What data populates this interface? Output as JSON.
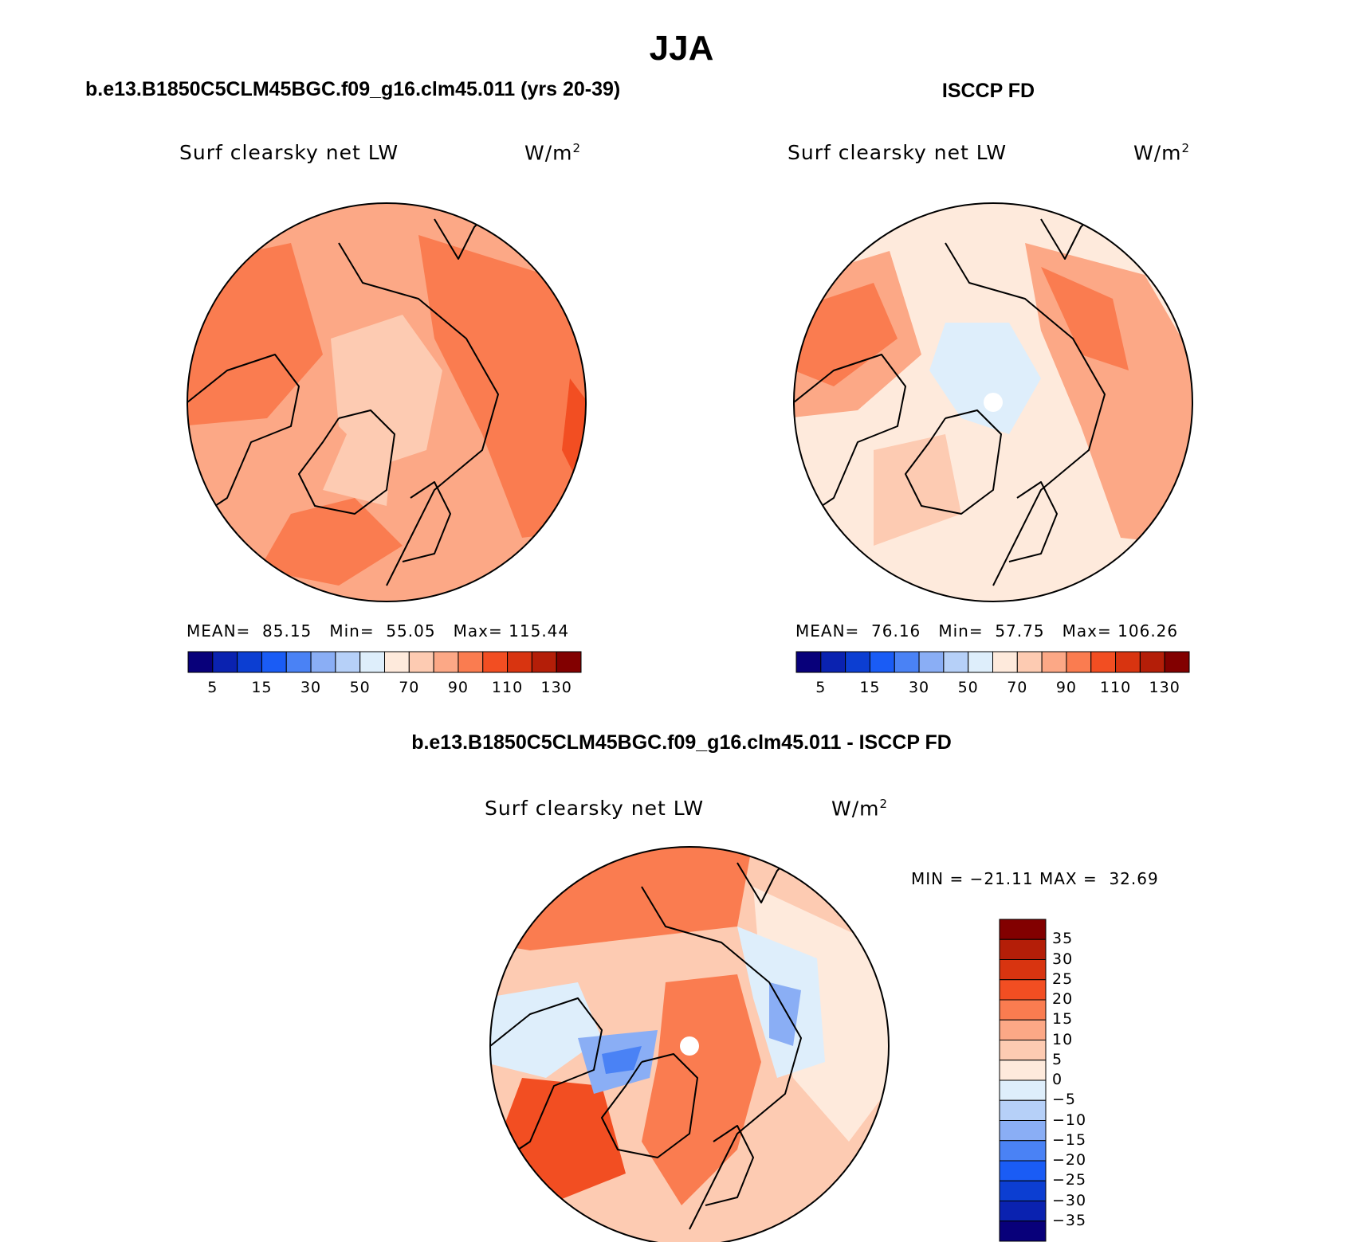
{
  "main_title": "JJA",
  "panels": [
    {
      "title": "b.e13.B1850C5CLM45BGC.f09_g16.clm45.011 (yrs 20-39)",
      "variable": "Surf clearsky net LW",
      "units_base": "W/m",
      "units_exp": "2",
      "stats": {
        "mean_label": "MEAN=",
        "mean": "85.15",
        "min_label": "Min=",
        "min": "55.05",
        "max_label": "Max=",
        "max": "115.44"
      }
    },
    {
      "title": "ISCCP FD",
      "variable": "Surf clearsky net LW",
      "units_base": "W/m",
      "units_exp": "2",
      "stats": {
        "mean_label": "MEAN=",
        "mean": "76.16",
        "min_label": "Min=",
        "min": "57.75",
        "max_label": "Max=",
        "max": "106.26"
      }
    },
    {
      "title": "b.e13.B1850C5CLM45BGC.f09_g16.clm45.011 - ISCCP FD",
      "variable": "Surf clearsky net LW",
      "units_base": "W/m",
      "units_exp": "2",
      "stats": {
        "min_label": "MIN =",
        "min": "−21.11",
        "max_label": "MAX =",
        "max": "32.69"
      }
    }
  ],
  "abs_colorbar": {
    "colors": [
      "#08007a",
      "#0a22b0",
      "#0c3ed2",
      "#1a5cf5",
      "#4a82f5",
      "#8aaef5",
      "#b6d0f8",
      "#deeefb",
      "#feeadc",
      "#fdcbb2",
      "#fca886",
      "#fa7c50",
      "#f24e22",
      "#d83410",
      "#b41e08",
      "#820000"
    ],
    "tick_labels": [
      "5",
      "15",
      "30",
      "50",
      "70",
      "90",
      "110",
      "130"
    ]
  },
  "diff_colorbar": {
    "colors": [
      "#820000",
      "#b41e08",
      "#d83410",
      "#f24e22",
      "#fa7c50",
      "#fca886",
      "#fdcbb2",
      "#feeadc",
      "#deeefb",
      "#b6d0f8",
      "#8aaef5",
      "#4a82f5",
      "#1a5cf5",
      "#0c3ed2",
      "#0a22b0",
      "#08007a"
    ],
    "tick_labels": [
      "35",
      "30",
      "25",
      "20",
      "15",
      "10",
      "5",
      "0",
      "−5",
      "−10",
      "−15",
      "−20",
      "−25",
      "−30",
      "−35"
    ]
  },
  "map_colors": {
    "abs_base": "#fca886",
    "abs_light": "#fdcbb2",
    "abs_warm": "#fa7c50",
    "abs_hot": "#f24e22",
    "obs_base": "#feeadc",
    "obs_light": "#fdcbb2",
    "obs_warm": "#fca886",
    "obs_hot": "#fa7c50",
    "obs_cool": "#deeefb",
    "diff_base": "#fdcbb2",
    "diff_warm": "#fa7c50",
    "diff_hot": "#f24e22",
    "diff_neutral": "#feeadc",
    "diff_cool": "#deeefb",
    "diff_cold": "#8aaef5",
    "diff_coldest": "#4a82f5"
  }
}
